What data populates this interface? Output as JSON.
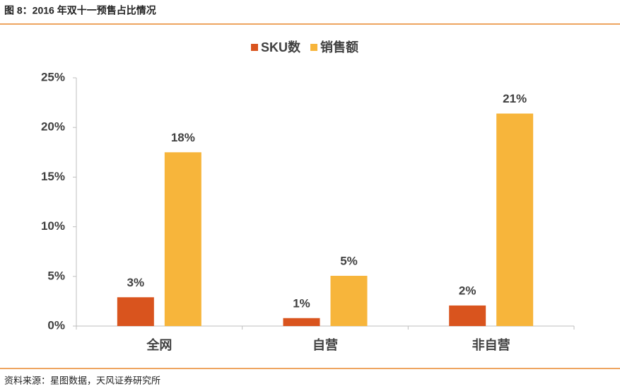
{
  "figure_title": "图 8：2016 年双十一预售占比情况",
  "source": "资料来源：星图数据，天风证券研究所",
  "chart_data": {
    "type": "bar",
    "categories": [
      "全网",
      "自营",
      "非自营"
    ],
    "series": [
      {
        "name": "SKU数",
        "color": "#d9541e",
        "values": [
          2.9,
          0.8,
          2.07
        ],
        "value_labels": [
          "3%",
          "1%",
          "2%"
        ]
      },
      {
        "name": "销售额",
        "color": "#f7b53b",
        "values": [
          17.5,
          5.06,
          21.4
        ],
        "value_labels": [
          "18%",
          "5%",
          "21%"
        ]
      }
    ],
    "ylim": [
      0,
      25
    ],
    "yticks": [
      {
        "value": 0,
        "label": "0%"
      },
      {
        "value": 5,
        "label": "5%"
      },
      {
        "value": 10,
        "label": "10%"
      },
      {
        "value": 15,
        "label": "15%"
      },
      {
        "value": 20,
        "label": "20%"
      },
      {
        "value": 25,
        "label": "25%"
      }
    ],
    "legend": "top",
    "grid": false
  }
}
